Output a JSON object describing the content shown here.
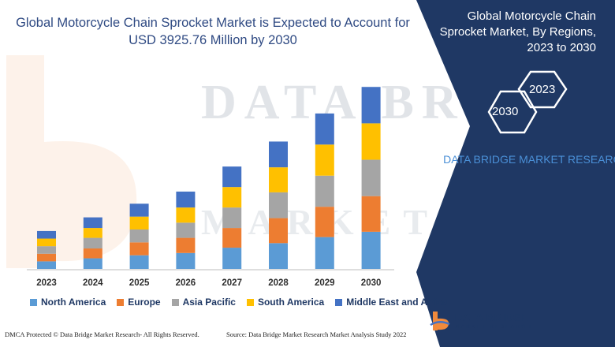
{
  "title": "Global Motorcycle Chain Sprocket Market is Expected to Account for USD 3925.76 Million by 2030",
  "right_panel": {
    "title": "Global Motorcycle Chain Sprocket Market, By Regions, 2023 to 2030",
    "hex_start": "2023",
    "hex_end": "2030",
    "brand": "DATA BRIDGE MARKET RESEARCH"
  },
  "watermark": {
    "line1": "DATA BRIDGE",
    "line2": "MARKET RESEARCH"
  },
  "colors": {
    "north_america": "#5b9bd5",
    "europe": "#ed7d31",
    "asia_pacific": "#a5a5a5",
    "south_america": "#ffc000",
    "middle_east_africa": "#4472c4",
    "navy_panel": "#1f3864"
  },
  "chart_data": {
    "type": "bar",
    "stacked": true,
    "categories": [
      "2023",
      "2024",
      "2025",
      "2026",
      "2027",
      "2028",
      "2029",
      "2030"
    ],
    "series": [
      {
        "name": "North America",
        "color": "#5b9bd5",
        "values": [
          10,
          14,
          18,
          21,
          28,
          34,
          42,
          49
        ]
      },
      {
        "name": "Europe",
        "color": "#ed7d31",
        "values": [
          10,
          13,
          17,
          20,
          26,
          33,
          40,
          47
        ]
      },
      {
        "name": "Asia Pacific",
        "color": "#a5a5a5",
        "values": [
          10,
          14,
          17,
          20,
          27,
          34,
          41,
          48
        ]
      },
      {
        "name": "South America",
        "color": "#ffc000",
        "values": [
          10,
          13,
          17,
          20,
          27,
          33,
          41,
          48
        ]
      },
      {
        "name": "Middle East and Africa",
        "color": "#4472c4",
        "values": [
          10,
          14,
          17,
          21,
          27,
          34,
          41,
          48
        ]
      }
    ],
    "ylim": [
      0,
      260
    ],
    "gridlines": false,
    "legend_position": "bottom"
  },
  "footer": {
    "left": "DMCA Protected © Data Bridge Market Research- All Rights Reserved.",
    "source": "Source: Data Bridge Market Research Market Analysis Study 2022"
  },
  "logo": {
    "name": "DATA BRIDGE",
    "sub": "MARKET RESEARCH"
  }
}
